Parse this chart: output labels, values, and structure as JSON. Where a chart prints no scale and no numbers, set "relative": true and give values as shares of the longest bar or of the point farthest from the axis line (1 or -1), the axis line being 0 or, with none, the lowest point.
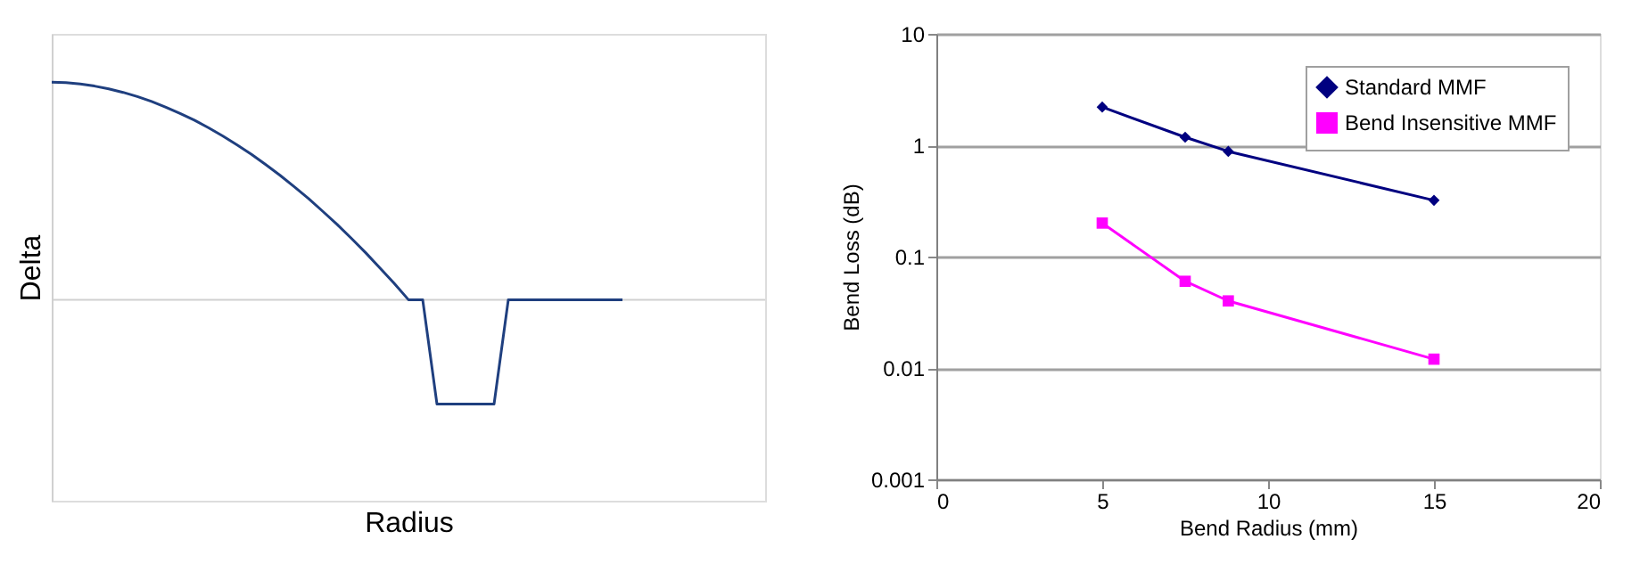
{
  "chart_data": [
    {
      "type": "line",
      "relative": true,
      "xlabel": "Radius",
      "ylabel": "Delta",
      "grid": false,
      "legend": false,
      "categories": [
        null,
        null,
        null,
        null,
        null,
        null,
        null,
        null,
        null,
        null,
        null,
        null,
        null,
        null,
        null,
        null,
        null,
        null,
        null,
        null,
        null,
        null,
        null,
        null,
        null,
        null,
        null,
        null,
        null,
        null,
        null,
        null,
        null,
        null,
        null,
        null,
        null,
        null,
        null,
        null,
        null,
        null,
        null,
        null,
        null,
        null,
        null,
        null,
        null,
        null,
        null
      ],
      "series": [
        {
          "color": "#1f3f7f",
          "values": [
            1,
            0.998,
            0.992,
            0.982,
            0.969,
            0.953,
            0.934,
            0.911,
            0.885,
            0.856,
            0.825,
            0.79,
            0.752,
            0.711,
            0.668,
            0.621,
            0.572,
            0.519,
            0.465,
            0.406,
            0.346,
            0.282,
            0.216,
            0.146,
            0.075,
            0,
            0,
            -0.48,
            -0.48,
            -0.48,
            -0.48,
            -0.48,
            0,
            0,
            0,
            0,
            0,
            0,
            0,
            0,
            0,
            null,
            null,
            null,
            null,
            null,
            null,
            null,
            null,
            null,
            null
          ]
        }
      ]
    },
    {
      "type": "line",
      "xlabel": "Bend Radius (mm)",
      "ylabel": "Bend Loss (dB)",
      "log": "y",
      "grid": "y",
      "legend": "top right",
      "xlim": [
        0,
        20
      ],
      "xticks": [
        0,
        5,
        10,
        15,
        20
      ],
      "ylim": [
        0.001,
        10
      ],
      "yticks": [
        0.001,
        0.01,
        0.1,
        1,
        10
      ],
      "series": [
        {
          "name": "Standard MMF",
          "color": "#000080",
          "marker": "diamond",
          "x": [
            5,
            7.5,
            8.8,
            15
          ],
          "values": [
            2.2,
            1.18,
            0.88,
            0.32
          ]
        },
        {
          "name": "Bend Insensitive MMF",
          "color": "#ff00ff",
          "marker": "square",
          "x": [
            5,
            7.5,
            8.8,
            15
          ],
          "values": [
            0.2,
            0.06,
            0.04,
            0.012
          ]
        }
      ]
    }
  ]
}
